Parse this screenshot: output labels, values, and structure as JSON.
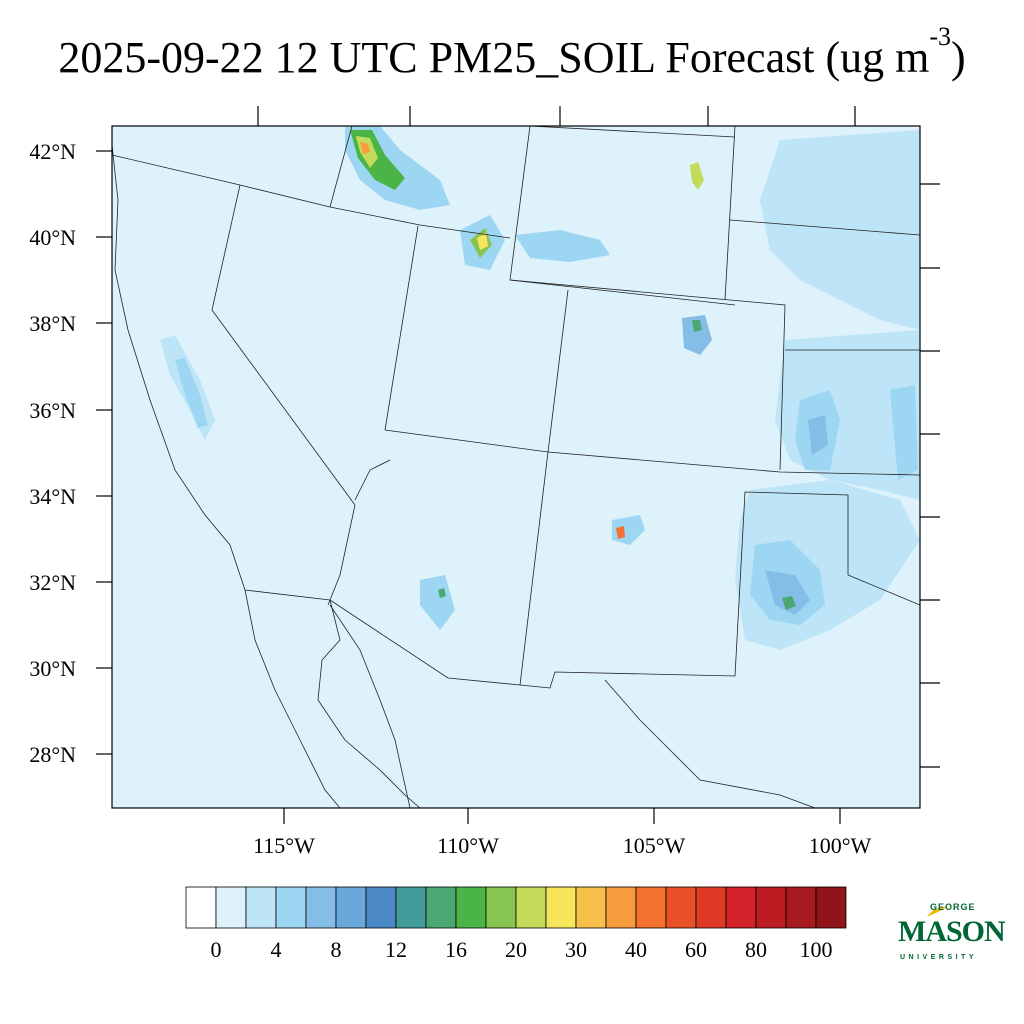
{
  "title": {
    "main": "2025-09-22 12 UTC PM25_SOIL Forecast (ug m",
    "exponent": "-3",
    "close": ")"
  },
  "map": {
    "lat_labels": [
      "42°N",
      "40°N",
      "38°N",
      "36°N",
      "34°N",
      "32°N",
      "30°N",
      "28°N"
    ],
    "lon_labels": [
      "115°W",
      "110°W",
      "105°W",
      "100°W"
    ],
    "background_color": "#ddf2fb"
  },
  "colorbar": {
    "colors": [
      "#ffffff",
      "#ddf2fb",
      "#bde5f7",
      "#9dd6f3",
      "#84bde6",
      "#6aa7da",
      "#4a88c6",
      "#449c9a",
      "#4ba873",
      "#4bb447",
      "#85c550",
      "#c4da5a",
      "#f7e65c",
      "#f7c04a",
      "#f79b3f",
      "#f4702e",
      "#ea5028",
      "#df3a26",
      "#d32229",
      "#bb1d23",
      "#a61a20",
      "#901519"
    ],
    "labels": [
      "0",
      "4",
      "8",
      "12",
      "16",
      "20",
      "30",
      "40",
      "60",
      "80",
      "100"
    ]
  },
  "logo": {
    "top": "GEORGE",
    "main": "MASON",
    "bottom": "UNIVERSITY",
    "color": "#006633",
    "accent": "#f2b705"
  }
}
